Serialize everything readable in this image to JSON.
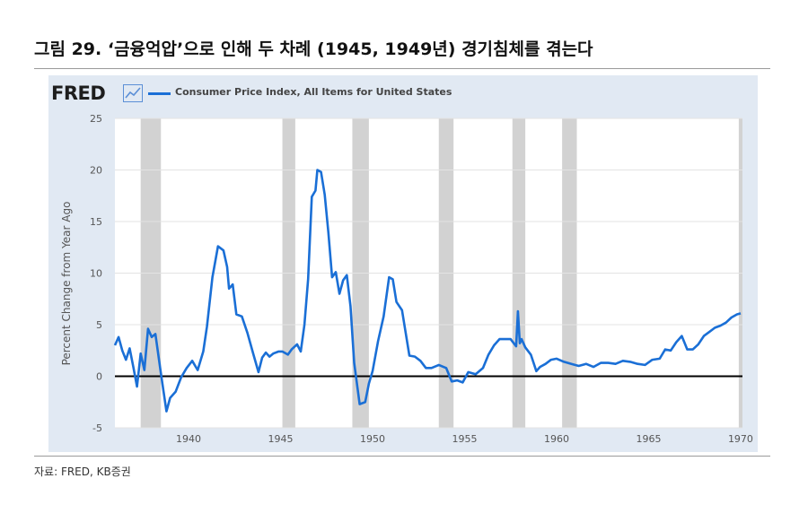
{
  "figure_title": "그림 29. ‘금융억압’으로 인해 두 차례 (1945, 1949년) 경기침체를 겪는다",
  "source": "자료: FRED, KB증권",
  "logo": {
    "text": "FRED",
    "icon": "chart-line-icon"
  },
  "colors": {
    "series": "#1a6fd6",
    "recession": "#d2d2d2",
    "panel": "#e1e9f3",
    "zero_line": "#000000"
  },
  "chart_data": {
    "type": "line",
    "title": "",
    "xlabel": "",
    "ylabel": "Percent Change from Year Ago",
    "xlim": [
      1936,
      1970.1
    ],
    "ylim": [
      -5,
      25
    ],
    "yticks": [
      -5,
      0,
      5,
      10,
      15,
      20,
      25
    ],
    "xticks": [
      1940,
      1945,
      1950,
      1955,
      1960,
      1965,
      1970
    ],
    "grid": true,
    "legend_position": "top-left",
    "zero_line": 0,
    "recessions": [
      [
        1937.4,
        1938.5
      ],
      [
        1945.1,
        1945.8
      ],
      [
        1948.9,
        1949.8
      ],
      [
        1953.6,
        1954.4
      ],
      [
        1957.6,
        1958.3
      ],
      [
        1960.3,
        1961.1
      ],
      [
        1969.9,
        1970.1
      ]
    ],
    "series": [
      {
        "name": "Consumer Price Index, All Items for United States",
        "x": [
          1936.0,
          1936.2,
          1936.4,
          1936.6,
          1936.8,
          1937.0,
          1937.2,
          1937.4,
          1937.6,
          1937.8,
          1938.0,
          1938.2,
          1938.5,
          1938.8,
          1939.0,
          1939.3,
          1939.6,
          1939.9,
          1940.2,
          1940.5,
          1940.8,
          1941.0,
          1941.3,
          1941.6,
          1941.9,
          1942.1,
          1942.2,
          1942.4,
          1942.6,
          1942.9,
          1943.2,
          1943.5,
          1943.8,
          1944.0,
          1944.2,
          1944.4,
          1944.6,
          1944.9,
          1945.1,
          1945.4,
          1945.6,
          1945.9,
          1946.1,
          1946.3,
          1946.5,
          1946.7,
          1946.9,
          1947.0,
          1947.2,
          1947.4,
          1947.6,
          1947.8,
          1948.0,
          1948.2,
          1948.4,
          1948.6,
          1948.8,
          1949.0,
          1949.3,
          1949.6,
          1949.8,
          1950.0,
          1950.3,
          1950.6,
          1950.9,
          1951.1,
          1951.3,
          1951.6,
          1951.8,
          1952.0,
          1952.3,
          1952.6,
          1952.9,
          1953.2,
          1953.6,
          1954.0,
          1954.3,
          1954.6,
          1954.9,
          1955.2,
          1955.6,
          1956.0,
          1956.3,
          1956.6,
          1956.9,
          1957.2,
          1957.5,
          1957.8,
          1957.9,
          1958.0,
          1958.1,
          1958.3,
          1958.6,
          1958.9,
          1959.1,
          1959.4,
          1959.7,
          1960.0,
          1960.4,
          1960.8,
          1961.2,
          1961.6,
          1962.0,
          1962.4,
          1962.8,
          1963.2,
          1963.6,
          1964.0,
          1964.4,
          1964.8,
          1965.2,
          1965.6,
          1965.9,
          1966.2,
          1966.5,
          1966.8,
          1967.1,
          1967.4,
          1967.7,
          1968.0,
          1968.3,
          1968.6,
          1968.9,
          1969.2,
          1969.5,
          1969.8,
          1970.0
        ],
        "values": [
          3.0,
          3.8,
          2.5,
          1.6,
          2.7,
          0.9,
          -1.0,
          2.2,
          0.6,
          4.6,
          3.8,
          4.1,
          0.3,
          -3.4,
          -2.1,
          -1.5,
          -0.1,
          0.8,
          1.5,
          0.6,
          2.4,
          4.8,
          9.6,
          12.6,
          12.2,
          10.6,
          8.5,
          8.9,
          6.0,
          5.8,
          4.2,
          2.3,
          0.4,
          1.8,
          2.3,
          1.9,
          2.2,
          2.4,
          2.4,
          2.1,
          2.6,
          3.1,
          2.4,
          5.0,
          9.4,
          17.4,
          18.0,
          20.0,
          19.8,
          17.6,
          13.9,
          9.6,
          10.1,
          8.0,
          9.3,
          9.8,
          6.8,
          1.3,
          -2.7,
          -2.5,
          -0.7,
          0.5,
          3.4,
          5.8,
          9.6,
          9.4,
          7.2,
          6.4,
          4.2,
          2.0,
          1.9,
          1.5,
          0.8,
          0.8,
          1.1,
          0.8,
          -0.5,
          -0.4,
          -0.6,
          0.4,
          0.2,
          0.8,
          2.1,
          3.0,
          3.6,
          3.6,
          3.6,
          2.9,
          6.3,
          3.2,
          3.6,
          2.8,
          2.1,
          0.5,
          0.9,
          1.2,
          1.6,
          1.7,
          1.4,
          1.2,
          1.0,
          1.2,
          0.9,
          1.3,
          1.3,
          1.2,
          1.5,
          1.4,
          1.2,
          1.1,
          1.6,
          1.7,
          2.6,
          2.5,
          3.3,
          3.9,
          2.6,
          2.6,
          3.1,
          3.9,
          4.3,
          4.7,
          4.9,
          5.2,
          5.7,
          6.0,
          6.1
        ]
      }
    ]
  }
}
